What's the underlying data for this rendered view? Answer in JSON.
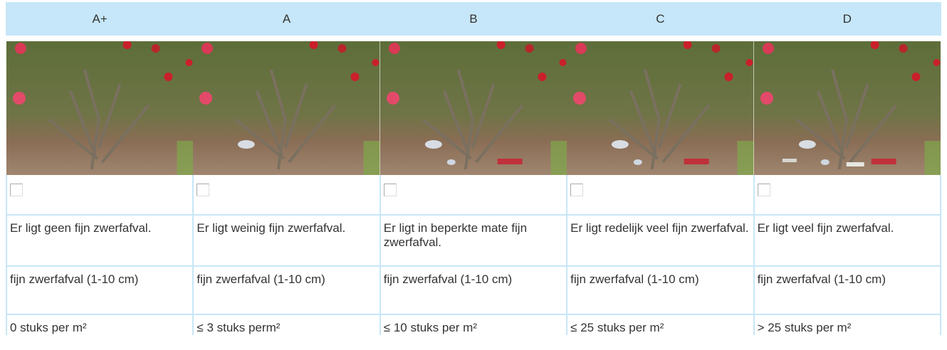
{
  "columns": [
    {
      "grade": "A+",
      "description": "Er ligt geen fijn zwerfafval.",
      "category": "fijn zwerfafval (1-10 cm)",
      "count": "0 stuks per m²"
    },
    {
      "grade": "A",
      "description": "Er ligt weinig fijn zwerfafval.",
      "category": "fijn zwerfafval (1-10 cm)",
      "count": "≤ 3 stuks perm²"
    },
    {
      "grade": "B",
      "description": "Er ligt in beperkte mate fijn zwerfafval.",
      "category": "fijn zwerfafval (1-10 cm)",
      "count": "≤ 10 stuks per m²"
    },
    {
      "grade": "C",
      "description": "Er ligt redelijk veel fijn zwerfafval.",
      "category": "fijn zwerfafval (1-10 cm)",
      "count": "≤ 25 stuks per m²"
    },
    {
      "grade": "D",
      "description": "Er ligt veel fijn zwerfafval.",
      "category": "fijn zwerfafval (1-10 cm)",
      "count": "> 25 stuks per m²"
    }
  ]
}
